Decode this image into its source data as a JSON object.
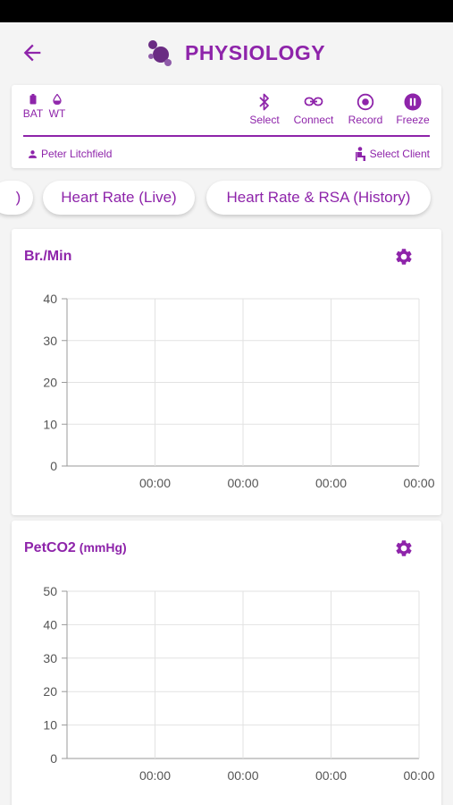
{
  "app": {
    "title": "PHYSIOLOGY",
    "accent_color": "#8e24aa",
    "back_icon": "arrow-left-icon",
    "logo_icon": "molecule-logo"
  },
  "device": {
    "battery_label": "BAT",
    "wt_label": "WT",
    "buttons": [
      {
        "label": "Select",
        "icon": "bluetooth-icon"
      },
      {
        "label": "Connect",
        "icon": "link-icon"
      },
      {
        "label": "Record",
        "icon": "record-icon"
      },
      {
        "label": "Freeze",
        "icon": "pause-icon"
      }
    ],
    "user_name": "Peter Litchfield",
    "select_client_label": "Select Client"
  },
  "tabs": [
    {
      "label": ")"
    },
    {
      "label": "Heart Rate (Live)"
    },
    {
      "label": "Heart Rate & RSA (History)"
    }
  ],
  "charts": {
    "breath": {
      "title": "Br./Min",
      "unit": ""
    },
    "petco2": {
      "title": "PetCO2",
      "unit": "(mmHg)"
    }
  },
  "chart_data": [
    {
      "type": "line",
      "title": "Br./Min",
      "ylim": [
        0,
        40
      ],
      "yticks": [
        "0",
        "10",
        "20",
        "30",
        "40"
      ],
      "xticks": [
        "00:00",
        "00:00",
        "00:00",
        "00:00"
      ],
      "series": [],
      "grid": true
    },
    {
      "type": "line",
      "title": "PetCO2 (mmHg)",
      "ylim": [
        0,
        50
      ],
      "yticks": [
        "0",
        "10",
        "20",
        "30",
        "40",
        "50"
      ],
      "xticks": [
        "00:00",
        "00:00",
        "00:00",
        "00:00"
      ],
      "series": [],
      "grid": true
    }
  ]
}
